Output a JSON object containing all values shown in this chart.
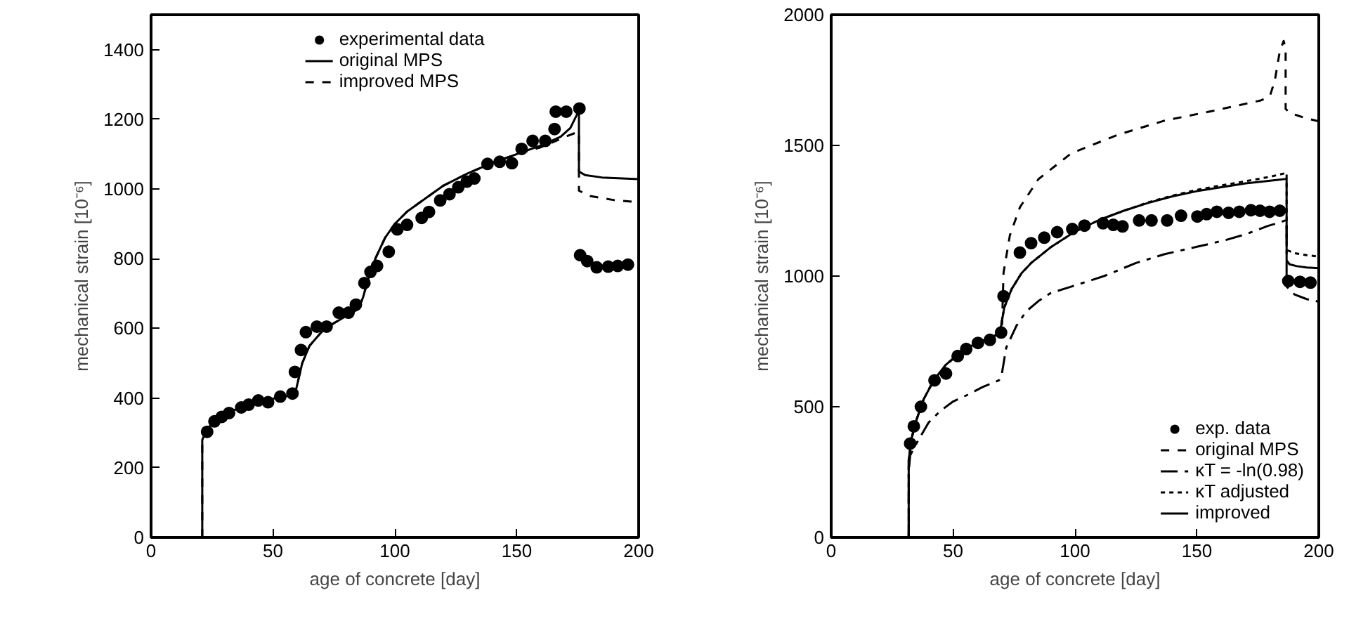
{
  "chart_data": [
    {
      "type": "line",
      "xlabel": "age of concrete [day]",
      "ylabel": "mechanical strain [10⁻⁶]",
      "xlim": [
        0,
        200
      ],
      "xticks": [
        0,
        50,
        100,
        150,
        200
      ],
      "ylim": [
        0,
        1500
      ],
      "yticks": [
        0,
        200,
        400,
        600,
        800,
        1000,
        1200,
        1400
      ],
      "grid": false,
      "legend": "top",
      "series": [
        {
          "name": "experimental data",
          "type": "scatter",
          "marker": "circle",
          "color": "#000000",
          "x": [
            23,
            26,
            29,
            32,
            37,
            40,
            44,
            48,
            53,
            58,
            59,
            61.5,
            63.5,
            68,
            72,
            77,
            81,
            84,
            87.5,
            90,
            92.7,
            97.5,
            101,
            105,
            111,
            114,
            118.6,
            122.4,
            126,
            129.5,
            132.6,
            138,
            143,
            148,
            152,
            156.5,
            161.7,
            165.5,
            166,
            170.3,
            175.7,
            176,
            178.9,
            182.8,
            187.5,
            191.4,
            195.6
          ],
          "values": [
            303,
            333,
            346,
            357,
            373,
            381,
            393,
            388,
            404,
            413,
            475,
            538,
            589,
            605,
            605,
            645,
            645,
            668,
            730,
            762,
            779,
            820,
            884,
            897,
            917,
            934,
            967,
            985,
            1005,
            1021,
            1030,
            1072,
            1078,
            1074,
            1115,
            1138,
            1138,
            1172,
            1222,
            1222,
            1231,
            810,
            793,
            775,
            777,
            779,
            783
          ]
        },
        {
          "name": "original MPS",
          "line_style": "solid",
          "color": "#000000",
          "x": [
            21,
            21,
            23,
            26,
            30,
            35,
            40,
            45,
            50,
            55,
            59,
            60,
            62,
            65,
            70,
            75,
            80,
            85,
            87,
            89,
            92,
            96,
            100,
            105,
            110,
            120,
            130,
            140,
            150,
            160,
            168,
            172,
            175.5,
            175.5,
            178,
            185,
            200
          ],
          "values": [
            0,
            280,
            310,
            335,
            352,
            368,
            380,
            390,
            398,
            405,
            410,
            440,
            500,
            550,
            590,
            615,
            635,
            655,
            690,
            740,
            800,
            860,
            900,
            935,
            960,
            1010,
            1045,
            1075,
            1100,
            1125,
            1150,
            1175,
            1225,
            1050,
            1040,
            1033,
            1028
          ]
        },
        {
          "name": "improved MPS",
          "line_style": "dashed",
          "color": "#000000",
          "x": [
            21,
            21,
            23,
            26,
            30,
            35,
            40,
            45,
            50,
            55,
            59,
            60,
            62,
            65,
            70,
            75,
            80,
            85,
            87,
            89,
            92,
            96,
            100,
            105,
            110,
            120,
            130,
            140,
            150,
            160,
            170,
            175.5,
            175.5,
            177,
            180,
            190,
            200
          ],
          "values": [
            0,
            280,
            310,
            335,
            352,
            368,
            380,
            390,
            398,
            405,
            410,
            440,
            500,
            550,
            590,
            615,
            635,
            655,
            690,
            740,
            800,
            860,
            900,
            935,
            960,
            1010,
            1045,
            1075,
            1100,
            1120,
            1150,
            1165,
            995,
            990,
            980,
            968,
            962
          ]
        }
      ]
    },
    {
      "type": "line",
      "xlabel": "age of concrete [day]",
      "ylabel": "mechanical strain [10⁻⁶]",
      "xlim": [
        0,
        200
      ],
      "xticks": [
        0,
        50,
        100,
        150,
        200
      ],
      "ylim": [
        0,
        2000
      ],
      "yticks": [
        0,
        500,
        1000,
        1500,
        2000
      ],
      "grid": false,
      "legend": "bottom right",
      "series": [
        {
          "name": "exp. data",
          "type": "scatter",
          "marker": "circle",
          "color": "#000000",
          "x": [
            32.4,
            33.9,
            36.8,
            42.4,
            47.1,
            51.9,
            55.4,
            60.2,
            65.1,
            69.7,
            70.7,
            77.4,
            82,
            87.4,
            92.7,
            98.9,
            103.9,
            111.5,
            115.7,
            119.5,
            126.3,
            131.4,
            137.8,
            143.5,
            150.2,
            154,
            158.2,
            163,
            167.4,
            172.2,
            175.9,
            179.8,
            184,
            187.5,
            192.3,
            196.6
          ],
          "values": [
            359,
            425,
            500,
            601,
            627,
            694,
            721,
            744,
            756,
            784,
            923,
            1090,
            1126,
            1147,
            1168,
            1180,
            1193,
            1202,
            1196,
            1190,
            1213,
            1213,
            1213,
            1231,
            1228,
            1237,
            1246,
            1242,
            1246,
            1252,
            1250,
            1246,
            1250,
            981,
            978,
            975
          ]
        },
        {
          "name": "original MPS",
          "line_style": "dashed",
          "color": "#000000",
          "x": [
            31.8,
            31.8,
            33,
            35,
            38,
            42,
            47,
            52,
            58,
            64,
            68,
            70,
            70.7,
            73.3,
            77.4,
            85,
            98.5,
            117.7,
            136.8,
            156,
            176.2,
            178,
            180,
            182,
            184,
            185.6,
            186.4,
            186.4,
            188,
            191.8,
            195,
            198.9,
            200
          ],
          "values": [
            0,
            296,
            380,
            450,
            530,
            600,
            660,
            700,
            735,
            760,
            775,
            790,
            1013,
            1156,
            1263,
            1371,
            1470,
            1541,
            1595,
            1631,
            1672,
            1680,
            1690,
            1750,
            1860,
            1900,
            1870,
            1640,
            1625,
            1613,
            1603,
            1595,
            1593
          ]
        },
        {
          "name": "κT = -ln(0.98)",
          "line_style": "dashdot",
          "color": "#000000",
          "x": [
            31.8,
            31.8,
            32.4,
            35,
            37.2,
            40,
            44.8,
            50,
            56.3,
            62,
            68.8,
            69.8,
            71.8,
            76,
            80,
            85.1,
            90,
            98.6,
            111.9,
            125,
            136.8,
            150,
            161.9,
            170,
            179.1,
            184,
            186.8,
            186.8,
            190,
            195,
            200
          ],
          "values": [
            0,
            250,
            314,
            360,
            395,
            440,
            484,
            520,
            547,
            575,
            601,
            615,
            726,
            810,
            865,
            905,
            935,
            960,
            1000,
            1050,
            1084,
            1112,
            1138,
            1160,
            1192,
            1205,
            1215,
            960,
            930,
            912,
            902
          ]
        },
        {
          "name": "κT adjusted",
          "line_style": "dotted",
          "color": "#000000",
          "x": [
            31.8,
            31.8,
            33,
            35,
            38,
            42,
            47,
            52,
            58,
            64,
            68,
            69.5,
            71,
            74,
            78,
            82,
            90,
            100,
            110,
            120,
            130,
            140,
            150,
            160,
            170,
            180,
            186.8,
            186.8,
            190,
            195,
            200
          ],
          "values": [
            0,
            296,
            380,
            450,
            530,
            600,
            660,
            700,
            735,
            760,
            775,
            800,
            880,
            950,
            1010,
            1050,
            1110,
            1170,
            1215,
            1250,
            1282,
            1308,
            1330,
            1347,
            1363,
            1380,
            1395,
            1100,
            1088,
            1080,
            1075
          ]
        },
        {
          "name": "improved",
          "line_style": "solid",
          "color": "#000000",
          "x": [
            31.8,
            31.8,
            33,
            35,
            38,
            42,
            47,
            52,
            58,
            64,
            68,
            69.5,
            71,
            74,
            78,
            82,
            90,
            100,
            110,
            120,
            130,
            140,
            150,
            160,
            170,
            180,
            186.8,
            186.8,
            188,
            191,
            195,
            200
          ],
          "values": [
            0,
            296,
            380,
            450,
            530,
            600,
            660,
            700,
            735,
            760,
            775,
            800,
            880,
            950,
            1010,
            1050,
            1110,
            1170,
            1215,
            1250,
            1280,
            1305,
            1325,
            1340,
            1355,
            1365,
            1372,
            1060,
            1045,
            1038,
            1033,
            1030
          ]
        }
      ]
    }
  ]
}
